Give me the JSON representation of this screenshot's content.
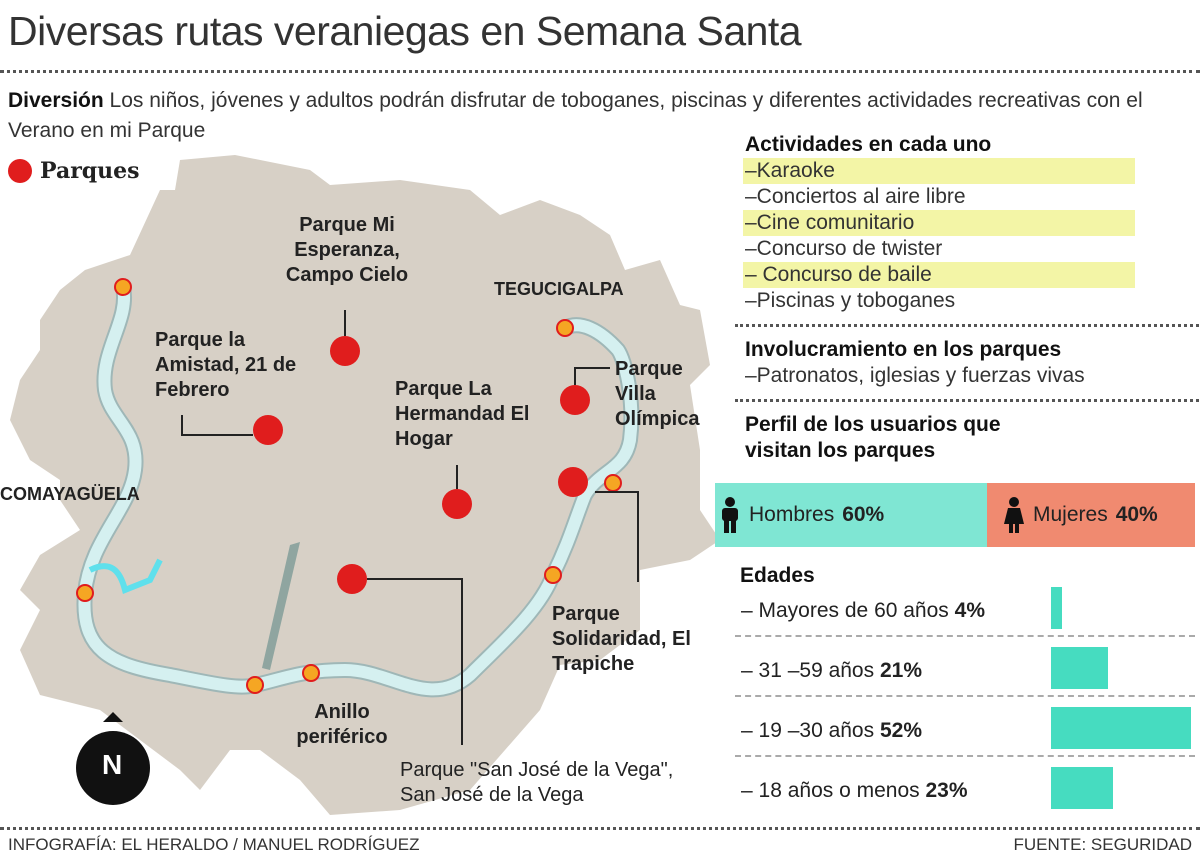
{
  "title": "Diversas rutas veraniegas en Semana Santa",
  "subtitle": {
    "lead": "Diversión",
    "text": " Los niños, jóvenes y adultos podrán disfrutar de toboganes, piscinas y diferentes actividades recreativas con el Verano en mi Parque"
  },
  "legend": {
    "label": "Parques",
    "color": "#e01d1d"
  },
  "map": {
    "cities": [
      "TEGUCIGALPA",
      "COMAYAGÜELA"
    ],
    "road_label": "Anillo periférico",
    "north_label": "N",
    "parks": [
      "Parque Mi Esperanza, Campo Cielo",
      "Parque la Amistad, 21 de Febrero",
      "Parque La Hermandad El Hogar",
      "Parque Villa Olímpica",
      "Parque Solidaridad, El Trapiche",
      "Parque \"San José de la Vega\", San José de la Vega"
    ],
    "colors": {
      "land": "#d7d0c6",
      "road": "#cfeaea",
      "park": "#e01d1d",
      "node": "#f5a623",
      "water": "#5fe0ec"
    }
  },
  "activities": {
    "heading": "Actividades en cada uno",
    "items": [
      {
        "label": "–Karaoke",
        "highlighted": true
      },
      {
        "label": "–Conciertos al aire libre",
        "highlighted": false
      },
      {
        "label": "–Cine comunitario",
        "highlighted": true
      },
      {
        "label": "–Concurso de twister",
        "highlighted": false
      },
      {
        "label": "– Concurso de baile",
        "highlighted": true
      },
      {
        "label": "–Piscinas y toboganes",
        "highlighted": false
      }
    ]
  },
  "involvement": {
    "heading": "Involucramiento en los parques",
    "text": "–Patronatos, iglesias y fuerzas vivas"
  },
  "profile": {
    "heading": "Perfil de los usuarios que visitan los parques",
    "men": {
      "label": "Hombres",
      "value": "60%",
      "color": "#7fe6d3"
    },
    "women": {
      "label": "Mujeres",
      "value": "40%",
      "color": "#f08a70"
    }
  },
  "ages": {
    "heading": "Edades",
    "rows": [
      {
        "label": "– Mayores de 60 años",
        "value": "4%",
        "pct": 4
      },
      {
        "label": "– 31 –59 años",
        "value": "21%",
        "pct": 21
      },
      {
        "label": "– 19 –30 años",
        "value": "52%",
        "pct": 52
      },
      {
        "label": "– 18 años o menos",
        "value": "23%",
        "pct": 23
      }
    ],
    "color": "#46dcc0"
  },
  "footer": {
    "credit": "INFOGRAFÍA: EL HERALDO / MANUEL RODRÍGUEZ",
    "source": "FUENTE: SEGURIDAD"
  }
}
